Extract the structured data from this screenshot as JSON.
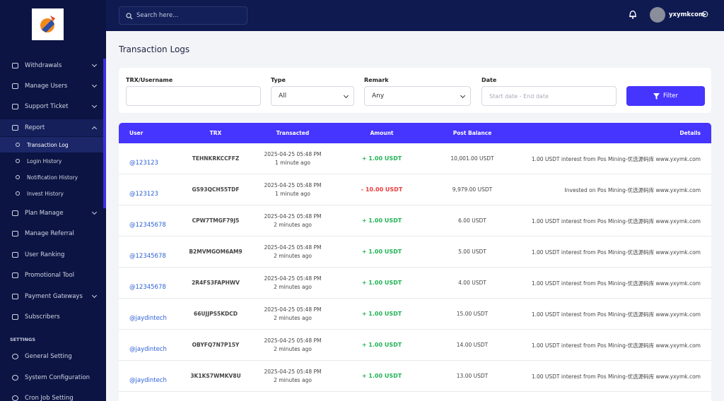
{
  "sidebar": {
    "menu": [
      {
        "label": "Withdrawals"
      },
      {
        "label": "Manage Users"
      },
      {
        "label": "Support Ticket"
      },
      {
        "label": "Report",
        "children": [
          "Transaction Log",
          "Login History",
          "Notification History",
          "Invest History"
        ]
      },
      {
        "label": "Plan Manage"
      },
      {
        "label": "Manage Referral"
      },
      {
        "label": "User Ranking"
      },
      {
        "label": "Promotional Tool"
      },
      {
        "label": "Payment Gateways"
      },
      {
        "label": "Subscribers"
      }
    ],
    "section": "SETTINGS",
    "settings": [
      "General Setting",
      "System Configuration",
      "Cron Job Setting"
    ]
  },
  "topbar": {
    "search_placeholder": "Search here...",
    "username": "yxymkcom"
  },
  "page_title": "Transaction Logs",
  "filters": {
    "fields": [
      {
        "label": "TRX/Username"
      },
      {
        "label": "Type",
        "value": "All"
      },
      {
        "label": "Remark",
        "value": "Any"
      },
      {
        "label": "Date",
        "placeholder": "Start date - End date"
      }
    ],
    "button": "Filter"
  },
  "table": {
    "columns": [
      "User",
      "TRX",
      "Transacted",
      "Amount",
      "Post Balance",
      "Details"
    ],
    "rows": [
      [
        "@123123",
        "TEHNKRKCCFFZ",
        "2025-04-25 05:48 PM",
        "1 minute ago",
        "+ 1.00 USDT",
        "10,001.00 USDT",
        "1.00 USDT interest from Pos Mining-优选源码库 www.yxymk.com"
      ],
      [
        "@123123",
        "GS93QCH55TDF",
        "2025-04-25 05:48 PM",
        "1 minute ago",
        "- 10.00 USDT",
        "9,979.00 USDT",
        "Invested on Pos Mining-优选源码库 www.yxymk.com"
      ],
      [
        "@12345678",
        "CPW7TMGF79J5",
        "2025-04-25 05:48 PM",
        "2 minutes ago",
        "+ 1.00 USDT",
        "6.00 USDT",
        "1.00 USDT interest from Pos Mining-优选源码库 www.yxymk.com"
      ],
      [
        "@12345678",
        "B2MVMGOM6AM9",
        "2025-04-25 05:48 PM",
        "2 minutes ago",
        "+ 1.00 USDT",
        "5.00 USDT",
        "1.00 USDT interest from Pos Mining-优选源码库 www.yxymk.com"
      ],
      [
        "@12345678",
        "2R4FS3FAPHWV",
        "2025-04-25 05:48 PM",
        "2 minutes ago",
        "+ 1.00 USDT",
        "4.00 USDT",
        "1.00 USDT interest from Pos Mining-优选源码库 www.yxymk.com"
      ],
      [
        "@jaydintech",
        "66UJJPS5KDCD",
        "2025-04-25 05:48 PM",
        "2 minutes ago",
        "+ 1.00 USDT",
        "15.00 USDT",
        "1.00 USDT interest from Pos Mining-优选源码库 www.yxymk.com"
      ],
      [
        "@jaydintech",
        "OBYFQ7N7P15Y",
        "2025-04-25 05:48 PM",
        "2 minutes ago",
        "+ 1.00 USDT",
        "14.00 USDT",
        "1.00 USDT interest from Pos Mining-优选源码库 www.yxymk.com"
      ],
      [
        "@jaydintech",
        "3K1KS7WMKV8U",
        "2025-04-25 05:48 PM",
        "2 minutes ago",
        "+ 1.00 USDT",
        "13.00 USDT",
        "1.00 USDT interest from Pos Mining-优选源码库 www.yxymk.com"
      ]
    ]
  }
}
